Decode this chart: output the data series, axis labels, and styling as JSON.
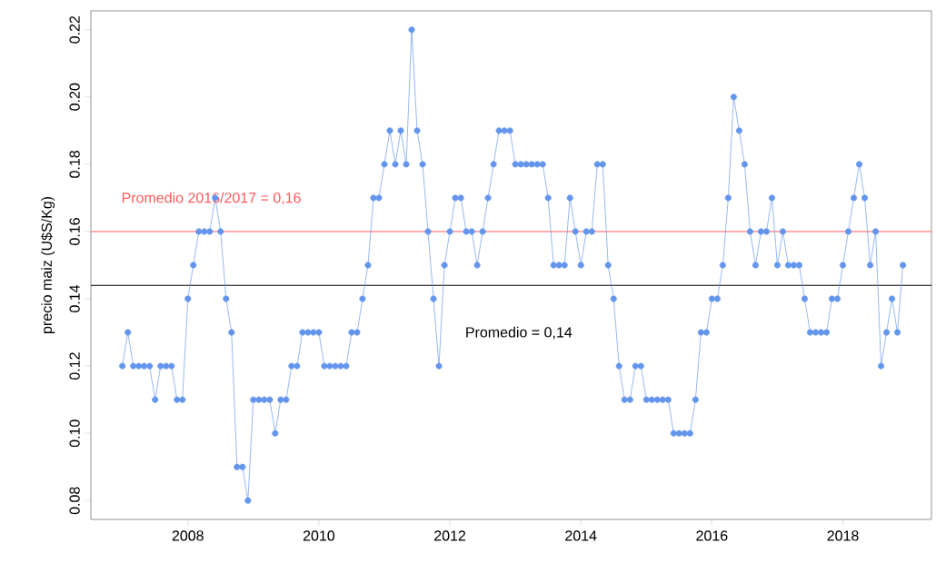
{
  "chart_data": {
    "type": "line",
    "ylabel": "precio maiz (U$S/Kg)",
    "x": [
      "2007-01",
      "2007-02",
      "2007-03",
      "2007-04",
      "2007-05",
      "2007-06",
      "2007-07",
      "2007-08",
      "2007-09",
      "2007-10",
      "2007-11",
      "2007-12",
      "2008-01",
      "2008-02",
      "2008-03",
      "2008-04",
      "2008-05",
      "2008-06",
      "2008-07",
      "2008-08",
      "2008-09",
      "2008-10",
      "2008-11",
      "2008-12",
      "2009-01",
      "2009-02",
      "2009-03",
      "2009-04",
      "2009-05",
      "2009-06",
      "2009-07",
      "2009-08",
      "2009-09",
      "2009-10",
      "2009-11",
      "2009-12",
      "2010-01",
      "2010-02",
      "2010-03",
      "2010-04",
      "2010-05",
      "2010-06",
      "2010-07",
      "2010-08",
      "2010-09",
      "2010-10",
      "2010-11",
      "2010-12",
      "2011-01",
      "2011-02",
      "2011-03",
      "2011-04",
      "2011-05",
      "2011-06",
      "2011-07",
      "2011-08",
      "2011-09",
      "2011-10",
      "2011-11",
      "2011-12",
      "2012-01",
      "2012-02",
      "2012-03",
      "2012-04",
      "2012-05",
      "2012-06",
      "2012-07",
      "2012-08",
      "2012-09",
      "2012-10",
      "2012-11",
      "2012-12",
      "2013-01",
      "2013-02",
      "2013-03",
      "2013-04",
      "2013-05",
      "2013-06",
      "2013-07",
      "2013-08",
      "2013-09",
      "2013-10",
      "2013-11",
      "2013-12",
      "2014-01",
      "2014-02",
      "2014-03",
      "2014-04",
      "2014-05",
      "2014-06",
      "2014-07",
      "2014-08",
      "2014-09",
      "2014-10",
      "2014-11",
      "2014-12",
      "2015-01",
      "2015-02",
      "2015-03",
      "2015-04",
      "2015-05",
      "2015-06",
      "2015-07",
      "2015-08",
      "2015-09",
      "2015-10",
      "2015-11",
      "2015-12",
      "2016-01",
      "2016-02",
      "2016-03",
      "2016-04",
      "2016-05",
      "2016-06",
      "2016-07",
      "2016-08",
      "2016-09",
      "2016-10",
      "2016-11",
      "2016-12",
      "2017-01",
      "2017-02",
      "2017-03",
      "2017-04",
      "2017-05",
      "2017-06",
      "2017-07",
      "2017-08",
      "2017-09",
      "2017-10",
      "2017-11",
      "2017-12",
      "2018-01",
      "2018-02",
      "2018-03",
      "2018-04",
      "2018-05",
      "2018-06",
      "2018-07",
      "2018-08",
      "2018-09",
      "2018-10",
      "2018-11",
      "2018-12"
    ],
    "series": [
      {
        "color": "#6495ed",
        "values": [
          0.12,
          0.13,
          0.12,
          0.12,
          0.12,
          0.12,
          0.11,
          0.12,
          0.12,
          0.12,
          0.11,
          0.11,
          0.14,
          0.15,
          0.16,
          0.16,
          0.16,
          0.17,
          0.16,
          0.14,
          0.13,
          0.09,
          0.09,
          0.08,
          0.11,
          0.11,
          0.11,
          0.11,
          0.1,
          0.11,
          0.11,
          0.12,
          0.12,
          0.13,
          0.13,
          0.13,
          0.13,
          0.12,
          0.12,
          0.12,
          0.12,
          0.12,
          0.13,
          0.13,
          0.14,
          0.15,
          0.17,
          0.17,
          0.18,
          0.19,
          0.18,
          0.19,
          0.18,
          0.22,
          0.19,
          0.18,
          0.16,
          0.14,
          0.12,
          0.15,
          0.16,
          0.17,
          0.17,
          0.16,
          0.16,
          0.15,
          0.16,
          0.17,
          0.18,
          0.19,
          0.19,
          0.19,
          0.18,
          0.18,
          0.18,
          0.18,
          0.18,
          0.18,
          0.17,
          0.15,
          0.15,
          0.15,
          0.17,
          0.16,
          0.15,
          0.16,
          0.16,
          0.18,
          0.18,
          0.15,
          0.14,
          0.12,
          0.11,
          0.11,
          0.12,
          0.12,
          0.11,
          0.11,
          0.11,
          0.11,
          0.11,
          0.1,
          0.1,
          0.1,
          0.1,
          0.11,
          0.13,
          0.13,
          0.14,
          0.14,
          0.15,
          0.17,
          0.2,
          0.19,
          0.18,
          0.16,
          0.15,
          0.16,
          0.16,
          0.17,
          0.15,
          0.16,
          0.15,
          0.15,
          0.15,
          0.14,
          0.13,
          0.13,
          0.13,
          0.13,
          0.14,
          0.14,
          0.15,
          0.16,
          0.17,
          0.18,
          0.17,
          0.15,
          0.16,
          0.12,
          0.13,
          0.14,
          0.13,
          0.15
        ]
      }
    ],
    "xlim": [
      "2006-07-08",
      "2019-05-08"
    ],
    "xticks": [
      "2008",
      "2010",
      "2012",
      "2014",
      "2016",
      "2018"
    ],
    "ylim": [
      0.0744,
      0.2256
    ],
    "yticks": [
      {
        "value": 0.08,
        "label": "0.08"
      },
      {
        "value": 0.1,
        "label": "0.10"
      },
      {
        "value": 0.12,
        "label": "0.12"
      },
      {
        "value": 0.14,
        "label": "0.14"
      },
      {
        "value": 0.16,
        "label": "0.16"
      },
      {
        "value": 0.18,
        "label": "0.18"
      },
      {
        "value": 0.2,
        "label": "0.20"
      },
      {
        "value": 0.22,
        "label": "0.22"
      }
    ],
    "ref_lines": [
      {
        "axis": "y",
        "value": 0.16,
        "label": "Promedio 2016/2017 = 0,16",
        "color": "#ff5a5a"
      },
      {
        "axis": "y",
        "value": 0.144,
        "label": "Promedio = 0,14",
        "color": "#000000"
      }
    ],
    "marker": "circle",
    "line_style": "solid",
    "grid": false
  }
}
